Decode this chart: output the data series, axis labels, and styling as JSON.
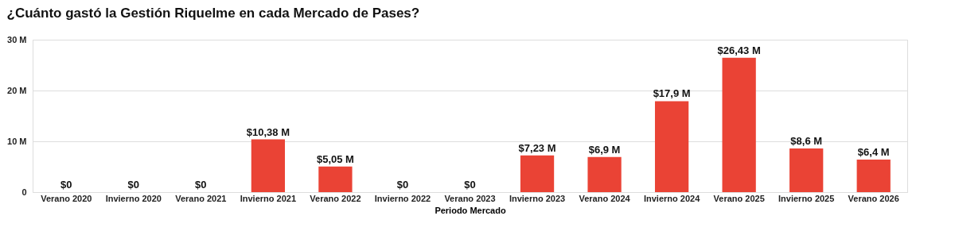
{
  "chart_data": {
    "type": "bar",
    "title": "¿Cuánto gastó la Gestión Riquelme en cada Mercado de Pases?",
    "xlabel": "Periodo Mercado",
    "categories": [
      "Verano 2020",
      "Invierno 2020",
      "Verano 2021",
      "Invierno 2021",
      "Verano 2022",
      "Invierno 2022",
      "Verano 2023",
      "Invierno 2023",
      "Verano 2024",
      "Invierno 2024",
      "Verano 2025",
      "Invierno 2025",
      "Verano 2026"
    ],
    "values": [
      0,
      0,
      0,
      10.38,
      5.05,
      0,
      0,
      7.23,
      6.9,
      17.9,
      26.43,
      8.6,
      6.4
    ],
    "value_labels": [
      "$0",
      "$0",
      "$0",
      "$10,38 M",
      "$5,05 M",
      "$0",
      "$0",
      "$7,23 M",
      "$6,9 M",
      "$17,9 M",
      "$26,43 M",
      "$8,6 M",
      "$6,4 M"
    ],
    "color": "#ea4335",
    "ylim": [
      0,
      30
    ],
    "yticks": [
      0,
      {
        "value": 10,
        "label": "10 M"
      },
      {
        "value": 20,
        "label": "20 M"
      },
      {
        "value": 30,
        "label": "30 M"
      }
    ],
    "grid": "y"
  }
}
